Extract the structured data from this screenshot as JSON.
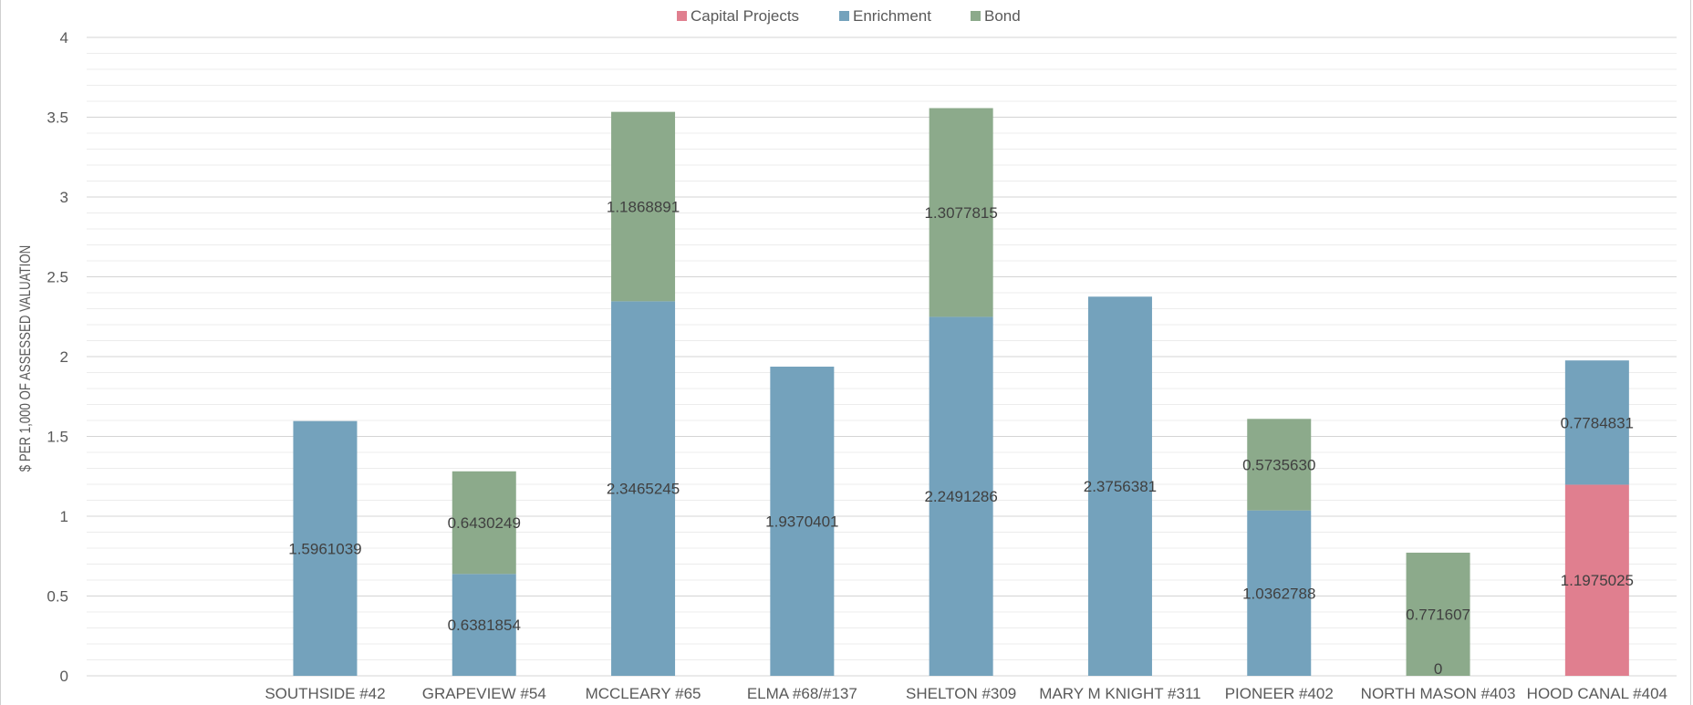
{
  "chart_data": {
    "type": "bar",
    "stacked": true,
    "title": "",
    "xlabel": "",
    "ylabel": "$ PER 1,000 OF ASSESSED VALUATION",
    "ylim": [
      0,
      4
    ],
    "yticks": [
      0,
      0.5,
      1,
      1.5,
      2,
      2.5,
      3,
      3.5,
      4
    ],
    "ytick_labels": [
      "0",
      "0.5",
      "1",
      "1.5",
      "2",
      "2.5",
      "3",
      "3.5",
      "4"
    ],
    "grid": true,
    "legend_position": "top-center",
    "categories": [
      "",
      "SOUTHSIDE #42",
      "GRAPEVIEW #54",
      "MCCLEARY #65",
      "ELMA #68/#137",
      "SHELTON #309",
      "MARY M KNIGHT #311",
      "PIONEER #402",
      "NORTH MASON #403",
      "HOOD CANAL #404"
    ],
    "series": [
      {
        "name": "Capital Projects",
        "color": "#e07f8f",
        "values": [
          null,
          null,
          null,
          null,
          null,
          null,
          null,
          null,
          null,
          1.1975025
        ],
        "labels": [
          "",
          "",
          "",
          "",
          "",
          "",
          "",
          "",
          "",
          "1.1975025"
        ]
      },
      {
        "name": "Enrichment",
        "color": "#74a2bc",
        "values": [
          null,
          1.5961039,
          0.6381854,
          2.3465245,
          1.9370401,
          2.2491286,
          2.3756381,
          1.0362788,
          0,
          0.7784831
        ],
        "labels": [
          "",
          "1.5961039",
          "0.6381854",
          "2.3465245",
          "1.9370401",
          "2.2491286",
          "2.3756381",
          "1.0362788",
          "0",
          "0.7784831"
        ]
      },
      {
        "name": "Bond",
        "color": "#8caa8b",
        "values": [
          null,
          null,
          0.6430249,
          1.1868891,
          null,
          1.3077815,
          null,
          0.573563,
          0.771607,
          null
        ],
        "labels": [
          "",
          "",
          "0.6430249",
          "1.1868891",
          "",
          "1.3077815",
          "",
          "0.5735630",
          "0.771607",
          ""
        ]
      }
    ]
  }
}
